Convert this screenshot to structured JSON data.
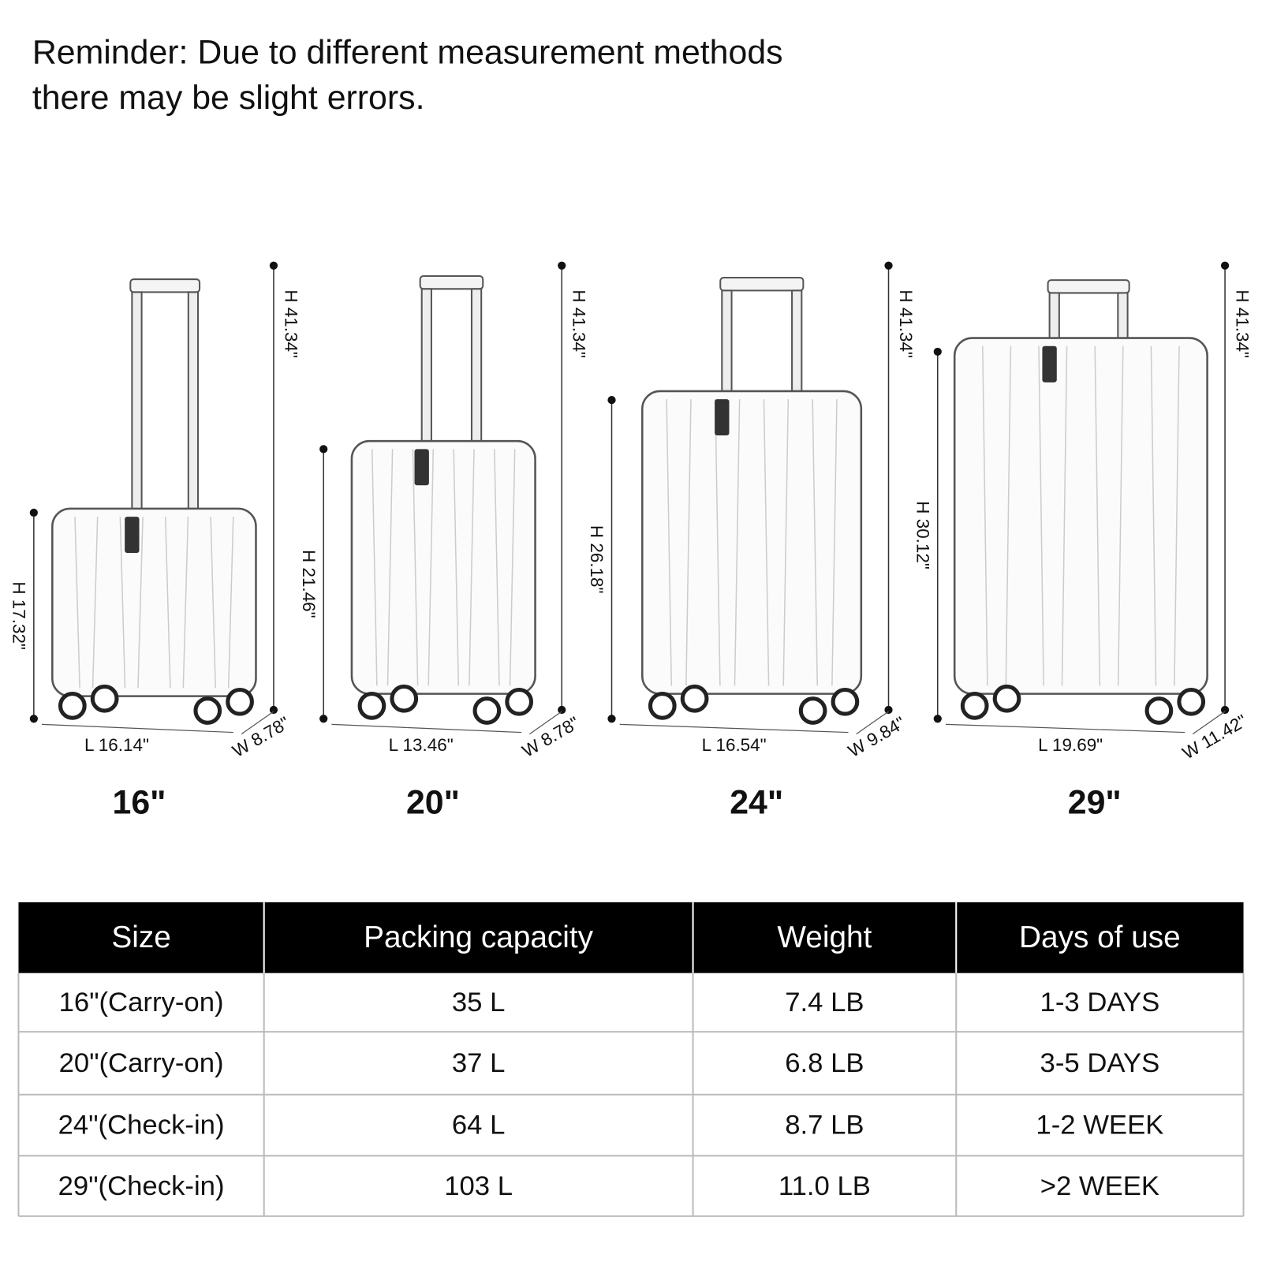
{
  "reminder": [
    "Reminder: Due to different measurement methods",
    "there may be slight errors."
  ],
  "suitcases": [
    {
      "size": "16\"",
      "height_total": "H 41.34\"",
      "height_body": "H 17.32\"",
      "length": "L 16.14\"",
      "width": "W 8.78\""
    },
    {
      "size": "20\"",
      "height_total": "H 41.34\"",
      "height_body": "H 21.46\"",
      "length": "L 13.46\"",
      "width": "W 8.78\""
    },
    {
      "size": "24\"",
      "height_total": "H 41.34\"",
      "height_body": "H 26.18\"",
      "length": "L 16.54\"",
      "width": "W 9.84\""
    },
    {
      "size": "29\"",
      "height_total": "H 41.34\"",
      "height_body": "H 30.12\"",
      "length": "L 19.69\"",
      "width": "W 11.42\""
    }
  ],
  "table": {
    "header": [
      "Size",
      "Packing capacity",
      "Weight",
      "Days of use"
    ],
    "rows": [
      [
        "16\"(Carry-on)",
        "35 L",
        "7.4 LB",
        "1-3 DAYS"
      ],
      [
        "20\"(Carry-on)",
        "37 L",
        "6.8 LB",
        "3-5 DAYS"
      ],
      [
        "24\"(Check-in)",
        "64 L",
        "8.7 LB",
        "1-2 WEEK"
      ],
      [
        "29\"(Check-in)",
        "103 L",
        "11.0 LB",
        ">2 WEEK"
      ]
    ]
  }
}
